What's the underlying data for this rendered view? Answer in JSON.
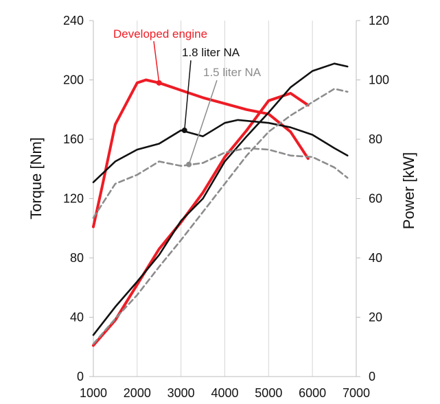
{
  "chart_data": {
    "type": "line",
    "x_label": "",
    "y_left_label": "Torque [Nm]",
    "y_right_label": "Power [kW]",
    "x_range": [
      1000,
      7000
    ],
    "y_left_range": [
      0,
      240
    ],
    "y_right_range": [
      0,
      120
    ],
    "x_ticks": [
      "1000",
      "2000",
      "3000",
      "4000",
      "5000",
      "6000",
      "7000"
    ],
    "y_left_ticks": [
      "0",
      "40",
      "80",
      "120",
      "160",
      "200",
      "240"
    ],
    "y_right_ticks": [
      "0",
      "20",
      "40",
      "60",
      "80",
      "100",
      "120"
    ],
    "grid": "vertical",
    "series": [
      {
        "name": "Developed engine",
        "quantity": "torque",
        "axis": "left",
        "color": "#ee1c25",
        "style": "solid",
        "x": [
          1000,
          1200,
          1500,
          2000,
          2200,
          2500,
          3000,
          3500,
          4000,
          4500,
          5000,
          5500,
          5900
        ],
        "y": [
          101,
          128,
          170,
          198,
          200,
          198,
          193,
          188,
          184,
          180,
          177,
          165,
          147
        ]
      },
      {
        "name": "Developed engine",
        "quantity": "power",
        "axis": "right",
        "color": "#ee1c25",
        "style": "solid",
        "x": [
          1000,
          1500,
          2000,
          2500,
          3000,
          3500,
          4000,
          4500,
          5000,
          5500,
          5900
        ],
        "y": [
          10.5,
          19,
          31,
          43,
          52,
          62,
          74,
          83,
          93,
          95.5,
          91.5
        ]
      },
      {
        "name": "1.8 liter NA",
        "quantity": "torque",
        "axis": "left",
        "color": "#111111",
        "style": "solid",
        "x": [
          1000,
          1500,
          2000,
          2500,
          3000,
          3500,
          4000,
          4300,
          5000,
          5500,
          6000,
          6500,
          6800
        ],
        "y": [
          131,
          145,
          153,
          157,
          166,
          162,
          171,
          173,
          171,
          168,
          163,
          154,
          149
        ]
      },
      {
        "name": "1.8 liter NA",
        "quantity": "power",
        "axis": "right",
        "color": "#111111",
        "style": "solid",
        "x": [
          1000,
          1500,
          2000,
          2500,
          3000,
          3500,
          4000,
          4500,
          5000,
          5500,
          6000,
          6500,
          6800
        ],
        "y": [
          14,
          23.5,
          32,
          41,
          52.5,
          60,
          72.5,
          81,
          89,
          97.5,
          103,
          105.5,
          104.5
        ]
      },
      {
        "name": "1.5 liter NA",
        "quantity": "torque",
        "axis": "left",
        "color": "#8c8c8c",
        "style": "dashed",
        "x": [
          1000,
          1500,
          2000,
          2500,
          3000,
          3500,
          4000,
          4500,
          5000,
          5500,
          6000,
          6500,
          6800
        ],
        "y": [
          107,
          130,
          136,
          145,
          142,
          144,
          151,
          154,
          153,
          149,
          148,
          141,
          134
        ]
      },
      {
        "name": "1.5 liter NA",
        "quantity": "power",
        "axis": "right",
        "color": "#8c8c8c",
        "style": "dashed",
        "x": [
          1000,
          1500,
          2000,
          2500,
          3000,
          3500,
          4000,
          4500,
          5000,
          5500,
          6000,
          6500,
          6800
        ],
        "y": [
          11,
          19.5,
          27.5,
          37,
          46,
          55.5,
          65,
          74.5,
          82.5,
          88,
          92.5,
          97,
          96
        ]
      }
    ],
    "annotations": [
      {
        "text": "Developed engine",
        "color": "#ee1c25",
        "marker_x": 2500,
        "marker_y": 198,
        "axis": "left"
      },
      {
        "text": "1.8 liter NA",
        "color": "#111111",
        "marker_x": 3080,
        "marker_y": 166,
        "axis": "left"
      },
      {
        "text": "1.5 liter NA",
        "color": "#8c8c8c",
        "marker_x": 3180,
        "marker_y": 143,
        "axis": "left"
      }
    ]
  }
}
